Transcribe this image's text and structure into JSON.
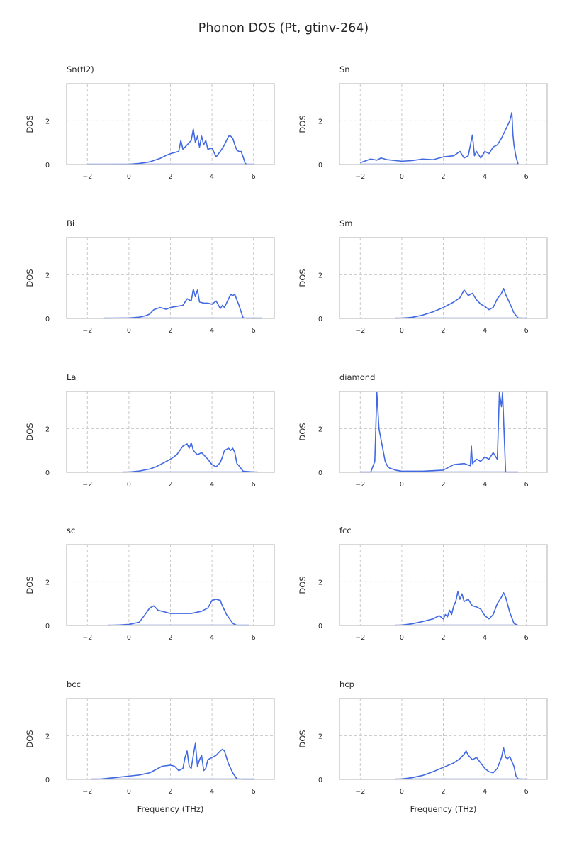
{
  "figure": {
    "title": "Phonon DOS (Pt, gtinv-264)"
  },
  "chart_data": [
    {
      "type": "line",
      "title": "Sn(tI2)",
      "ylabel": "DOS",
      "xlabel": "",
      "xlim": [
        -3,
        7
      ],
      "ylim": [
        0,
        3.7
      ],
      "xticks": [
        -2,
        0,
        2,
        4,
        6
      ],
      "yticks": [
        0,
        2
      ],
      "grid": true,
      "x": [
        -2,
        -1,
        0,
        0.5,
        1,
        1.5,
        1.8,
        2,
        2.2,
        2.4,
        2.5,
        2.6,
        2.8,
        3,
        3.1,
        3.2,
        3.3,
        3.4,
        3.5,
        3.6,
        3.7,
        3.8,
        4,
        4.2,
        4.4,
        4.6,
        4.8,
        4.9,
        5,
        5.1,
        5.2,
        5.3,
        5.4,
        5.5,
        5.6,
        5.7,
        6
      ],
      "series": [
        {
          "values": [
            0,
            0,
            0.01,
            0.05,
            0.12,
            0.28,
            0.42,
            0.5,
            0.55,
            0.6,
            1.1,
            0.7,
            0.9,
            1.1,
            1.62,
            1.0,
            1.3,
            0.8,
            1.3,
            0.9,
            1.1,
            0.7,
            0.75,
            0.35,
            0.6,
            0.9,
            1.3,
            1.3,
            1.2,
            0.9,
            0.65,
            0.6,
            0.6,
            0.35,
            0.05,
            0,
            0
          ]
        }
      ]
    },
    {
      "type": "line",
      "title": "Sn",
      "ylabel": "DOS",
      "xlabel": "",
      "xlim": [
        -3,
        7
      ],
      "ylim": [
        0,
        3.7
      ],
      "xticks": [
        -2,
        0,
        2,
        4,
        6
      ],
      "yticks": [
        0,
        2
      ],
      "grid": true,
      "x": [
        -2,
        -1.5,
        -1.2,
        -1,
        -0.7,
        -0.5,
        0,
        0.5,
        1,
        1.5,
        2,
        2.5,
        2.8,
        3,
        3.2,
        3.4,
        3.5,
        3.6,
        3.8,
        4,
        4.2,
        4.4,
        4.6,
        4.8,
        5,
        5.1,
        5.2,
        5.3,
        5.35,
        5.4,
        5.5,
        5.6
      ],
      "series": [
        {
          "values": [
            0.08,
            0.25,
            0.2,
            0.3,
            0.22,
            0.2,
            0.15,
            0.18,
            0.25,
            0.22,
            0.35,
            0.4,
            0.6,
            0.3,
            0.4,
            1.35,
            0.4,
            0.6,
            0.3,
            0.6,
            0.5,
            0.8,
            0.9,
            1.2,
            1.6,
            1.8,
            2.0,
            2.38,
            1.4,
            0.9,
            0.35,
            0.02
          ]
        }
      ]
    },
    {
      "type": "line",
      "title": "Bi",
      "ylabel": "DOS",
      "xlabel": "",
      "xlim": [
        -3,
        7
      ],
      "ylim": [
        0,
        3.7
      ],
      "xticks": [
        -2,
        0,
        2,
        4,
        6
      ],
      "yticks": [
        0,
        2
      ],
      "grid": true,
      "x": [
        -1.2,
        -0.5,
        0,
        0.5,
        0.8,
        1,
        1.2,
        1.5,
        1.8,
        2,
        2.3,
        2.6,
        2.8,
        3,
        3.1,
        3.2,
        3.3,
        3.4,
        3.6,
        3.8,
        4,
        4.2,
        4.4,
        4.5,
        4.6,
        4.8,
        4.9,
        5,
        5.1,
        5.3,
        5.5,
        5.7,
        6.4
      ],
      "series": [
        {
          "values": [
            0,
            0.01,
            0.02,
            0.06,
            0.12,
            0.2,
            0.4,
            0.5,
            0.42,
            0.5,
            0.55,
            0.6,
            0.9,
            0.8,
            1.33,
            1.0,
            1.3,
            0.75,
            0.7,
            0.7,
            0.65,
            0.8,
            0.45,
            0.6,
            0.5,
            0.9,
            1.1,
            1.05,
            1.1,
            0.6,
            0.02,
            0,
            0
          ]
        }
      ]
    },
    {
      "type": "line",
      "title": "Sm",
      "ylabel": "DOS",
      "xlabel": "",
      "xlim": [
        -3,
        7
      ],
      "ylim": [
        0,
        3.7
      ],
      "xticks": [
        -2,
        0,
        2,
        4,
        6
      ],
      "yticks": [
        0,
        2
      ],
      "grid": true,
      "x": [
        -0.3,
        0,
        0.5,
        1,
        1.5,
        2,
        2.5,
        2.8,
        3,
        3.2,
        3.4,
        3.6,
        3.8,
        4,
        4.2,
        4.4,
        4.6,
        4.8,
        4.9,
        5,
        5.2,
        5.4,
        5.6,
        6
      ],
      "series": [
        {
          "values": [
            0,
            0.01,
            0.05,
            0.15,
            0.3,
            0.5,
            0.75,
            0.95,
            1.3,
            1.05,
            1.15,
            0.85,
            0.65,
            0.55,
            0.4,
            0.5,
            0.9,
            1.15,
            1.37,
            1.1,
            0.7,
            0.25,
            0.02,
            0
          ]
        }
      ]
    },
    {
      "type": "line",
      "title": "La",
      "ylabel": "DOS",
      "xlabel": "",
      "xlim": [
        -3,
        7
      ],
      "ylim": [
        0,
        3.7
      ],
      "xticks": [
        -2,
        0,
        2,
        4,
        6
      ],
      "yticks": [
        0,
        2
      ],
      "grid": true,
      "x": [
        -0.3,
        0,
        0.5,
        1,
        1.3,
        1.6,
        2,
        2.3,
        2.6,
        2.8,
        2.9,
        3,
        3.1,
        3.3,
        3.5,
        3.6,
        3.8,
        4,
        4.2,
        4.4,
        4.5,
        4.6,
        4.8,
        4.9,
        5,
        5.1,
        5.2,
        5.3,
        5.5,
        6.2
      ],
      "series": [
        {
          "values": [
            0,
            0.01,
            0.06,
            0.15,
            0.25,
            0.4,
            0.6,
            0.8,
            1.2,
            1.3,
            1.1,
            1.35,
            1.0,
            0.8,
            0.9,
            0.8,
            0.6,
            0.35,
            0.25,
            0.45,
            0.7,
            1.0,
            1.1,
            1.0,
            1.1,
            0.9,
            0.4,
            0.3,
            0.05,
            0
          ]
        }
      ]
    },
    {
      "type": "line",
      "title": "diamond",
      "ylabel": "DOS",
      "xlabel": "",
      "xlim": [
        -3,
        7
      ],
      "ylim": [
        0,
        3.7
      ],
      "xticks": [
        -2,
        0,
        2,
        4,
        6
      ],
      "yticks": [
        0,
        2
      ],
      "grid": true,
      "x": [
        -2,
        -1.5,
        -1.3,
        -1.2,
        -1.1,
        -1,
        -0.9,
        -0.8,
        -0.7,
        -0.6,
        -0.3,
        0,
        1,
        2,
        2.2,
        2.5,
        3,
        3.3,
        3.35,
        3.4,
        3.6,
        3.8,
        4,
        4.2,
        4.4,
        4.6,
        4.7,
        4.8,
        4.85,
        4.9,
        5,
        5.2,
        5.6
      ],
      "series": [
        {
          "values": [
            0,
            0,
            0.5,
            3.65,
            2.0,
            1.5,
            1.0,
            0.5,
            0.3,
            0.2,
            0.1,
            0.05,
            0.05,
            0.1,
            0.2,
            0.35,
            0.4,
            0.3,
            1.2,
            0.4,
            0.6,
            0.5,
            0.7,
            0.6,
            0.9,
            0.6,
            3.65,
            3.0,
            3.65,
            2.5,
            0,
            0,
            0
          ]
        }
      ]
    },
    {
      "type": "line",
      "title": "sc",
      "ylabel": "DOS",
      "xlabel": "",
      "xlim": [
        -3,
        7
      ],
      "ylim": [
        0,
        3.7
      ],
      "xticks": [
        -2,
        0,
        2,
        4,
        6
      ],
      "yticks": [
        0,
        2
      ],
      "grid": true,
      "x": [
        -1,
        -0.5,
        0,
        0.5,
        0.7,
        1,
        1.2,
        1.4,
        1.6,
        2,
        2.5,
        3,
        3.5,
        3.8,
        4,
        4.2,
        4.4,
        4.5,
        4.7,
        5,
        5.2,
        5.8
      ],
      "series": [
        {
          "values": [
            0,
            0.02,
            0.05,
            0.15,
            0.4,
            0.8,
            0.9,
            0.7,
            0.65,
            0.55,
            0.55,
            0.55,
            0.65,
            0.8,
            1.15,
            1.2,
            1.15,
            0.9,
            0.5,
            0.1,
            0,
            0
          ]
        }
      ]
    },
    {
      "type": "line",
      "title": "fcc",
      "ylabel": "DOS",
      "xlabel": "",
      "xlim": [
        -3,
        7
      ],
      "ylim": [
        0,
        3.7
      ],
      "xticks": [
        -2,
        0,
        2,
        4,
        6
      ],
      "yticks": [
        0,
        2
      ],
      "grid": true,
      "x": [
        -0.3,
        0,
        0.5,
        1,
        1.5,
        1.8,
        2,
        2.1,
        2.2,
        2.3,
        2.4,
        2.5,
        2.6,
        2.7,
        2.8,
        2.9,
        3,
        3.2,
        3.4,
        3.6,
        3.8,
        4,
        4.2,
        4.4,
        4.6,
        4.8,
        4.9,
        5,
        5.2,
        5.4,
        5.6
      ],
      "series": [
        {
          "values": [
            0,
            0.02,
            0.08,
            0.18,
            0.3,
            0.45,
            0.3,
            0.5,
            0.4,
            0.7,
            0.5,
            0.9,
            1.1,
            1.55,
            1.2,
            1.45,
            1.1,
            1.2,
            0.9,
            0.85,
            0.75,
            0.45,
            0.3,
            0.5,
            1.0,
            1.3,
            1.5,
            1.3,
            0.6,
            0.1,
            0
          ]
        }
      ]
    },
    {
      "type": "line",
      "title": "bcc",
      "ylabel": "DOS",
      "xlabel": "Frequency (THz)",
      "xlim": [
        -3,
        7
      ],
      "ylim": [
        0,
        3.7
      ],
      "xticks": [
        -2,
        0,
        2,
        4,
        6
      ],
      "yticks": [
        0,
        2
      ],
      "grid": true,
      "x": [
        -1.8,
        -1.5,
        -1,
        -0.5,
        0,
        0.5,
        1,
        1.3,
        1.6,
        2,
        2.2,
        2.4,
        2.6,
        2.7,
        2.8,
        2.9,
        3,
        3.1,
        3.2,
        3.3,
        3.4,
        3.5,
        3.6,
        3.7,
        3.8,
        4,
        4.2,
        4.4,
        4.5,
        4.6,
        4.8,
        5,
        5.2,
        5.5,
        6
      ],
      "series": [
        {
          "values": [
            0,
            0,
            0.05,
            0.1,
            0.15,
            0.2,
            0.3,
            0.45,
            0.6,
            0.65,
            0.6,
            0.4,
            0.5,
            1.0,
            1.3,
            0.6,
            0.5,
            1.1,
            1.65,
            0.6,
            0.9,
            1.1,
            0.4,
            0.5,
            0.9,
            1.0,
            1.1,
            1.3,
            1.38,
            1.3,
            0.7,
            0.3,
            0.02,
            0,
            0
          ]
        }
      ]
    },
    {
      "type": "line",
      "title": "hcp",
      "ylabel": "DOS",
      "xlabel": "Frequency (THz)",
      "xlim": [
        -3,
        7
      ],
      "ylim": [
        0,
        3.7
      ],
      "xticks": [
        -2,
        0,
        2,
        4,
        6
      ],
      "yticks": [
        0,
        2
      ],
      "grid": true,
      "x": [
        -0.3,
        0,
        0.5,
        1,
        1.5,
        2,
        2.5,
        2.8,
        3,
        3.1,
        3.2,
        3.4,
        3.6,
        3.8,
        4,
        4.2,
        4.4,
        4.6,
        4.8,
        4.9,
        5,
        5.1,
        5.2,
        5.4,
        5.5,
        5.6,
        6
      ],
      "series": [
        {
          "values": [
            0,
            0.02,
            0.08,
            0.18,
            0.35,
            0.55,
            0.75,
            0.95,
            1.15,
            1.3,
            1.1,
            0.9,
            1.0,
            0.75,
            0.5,
            0.35,
            0.3,
            0.5,
            1.0,
            1.45,
            1.0,
            0.95,
            1.05,
            0.6,
            0.15,
            0.02,
            0
          ]
        }
      ]
    }
  ]
}
